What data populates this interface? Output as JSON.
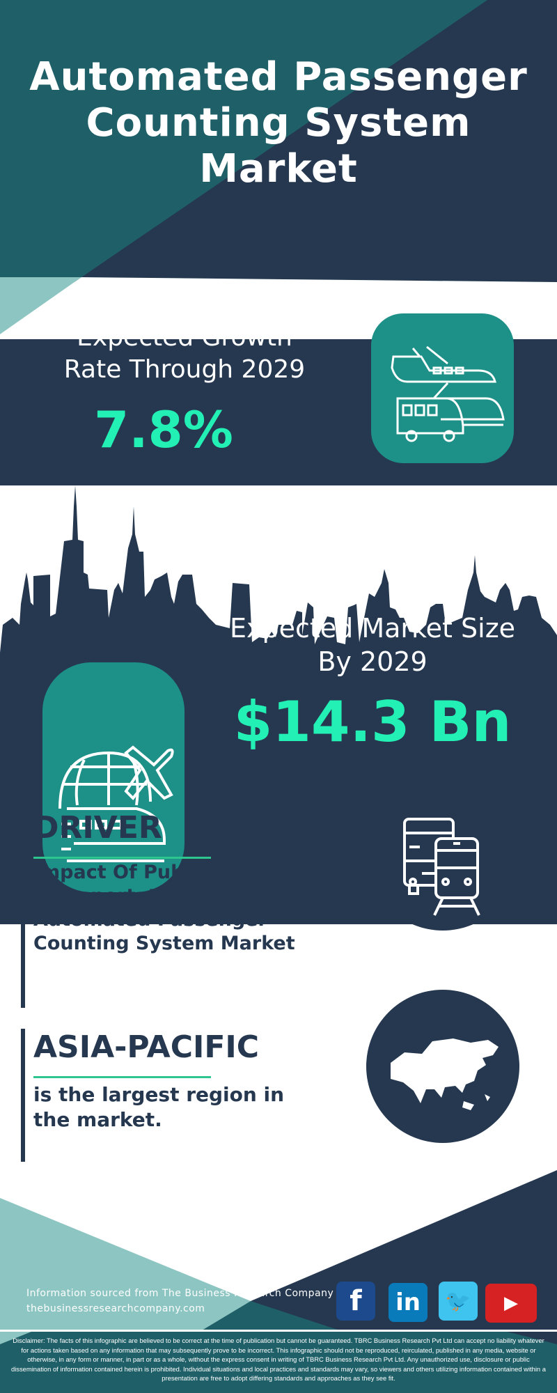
{
  "title": "Automated Passenger Counting System Market",
  "growth": {
    "label_line1": "Expected Growth",
    "label_line2": "Rate Through 2029",
    "value": "7.8%"
  },
  "market_size": {
    "label_line1": "Expected Market Size",
    "label_line2": "By 2029",
    "value": "$14.3 Bn"
  },
  "driver": {
    "heading": "DRIVER",
    "text": "Impact Of Public Transportation On The Automated Passenger Counting System Market"
  },
  "region": {
    "heading": "ASIA-PACIFIC",
    "text": "is the largest region in the market."
  },
  "footer": {
    "source": "Information sourced from The Business Research Company",
    "website": "thebusinessresearchcompany.com",
    "social": [
      "facebook-icon",
      "linkedin-icon",
      "twitter-icon",
      "youtube-icon"
    ],
    "disclaimer": "Disclaimer: The facts of this infographic are believed to be correct at the time of publication but cannot be guaranteed. TBRC Business Research Pvt Ltd can accept no liability whatever for actions taken based on any information that may subsequently prove to be incorrect. This infographic should not be reproduced, reirculated, published in any media, website or otherwise, in any form or manner, in part or as a whole, without the express consent in writing of TBRC Business Research Pvt Ltd. Any unauthorized use, disclosure or public dissemination of information contained herein is prohibited. Individual situations and local practices and standards may vary, so viewers and others utilizing information contained within a presentation are free to adopt differing standards and approaches as they see fit."
  },
  "colors": {
    "dark": "#253850",
    "teal": "#1f6068",
    "light_teal": "#8cc5c2",
    "accent": "#22f0b4",
    "icon_bg": "#1d9087"
  }
}
